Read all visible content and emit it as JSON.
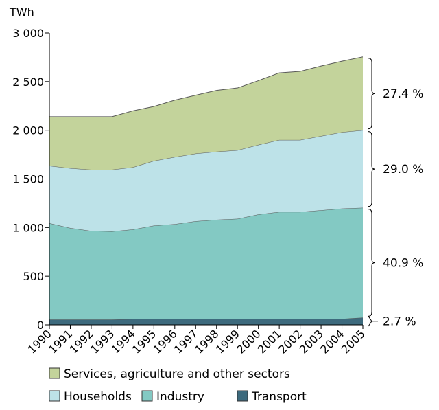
{
  "chart_data": {
    "type": "area",
    "stacked": true,
    "unit": "TWh",
    "x": [
      "1990",
      "1991",
      "1992",
      "1993",
      "1994",
      "1995",
      "1996",
      "1997",
      "1998",
      "1999",
      "2000",
      "2001",
      "2002",
      "2003",
      "2004",
      "2005"
    ],
    "ylim": [
      0,
      3000
    ],
    "yticks": [
      0,
      500,
      1000,
      1500,
      2000,
      2500,
      3000
    ],
    "ytick_labels": [
      "0",
      "500",
      "1 000",
      "1 500",
      "2 000",
      "2 500",
      "3 000"
    ],
    "grid": false,
    "series": [
      {
        "name": "Transport",
        "color": "#3d6a7d",
        "values": [
          55,
          55,
          55,
          55,
          60,
          60,
          60,
          60,
          60,
          60,
          60,
          60,
          60,
          60,
          62,
          75
        ]
      },
      {
        "name": "Industry",
        "color": "#83c9c3",
        "values": [
          990,
          940,
          910,
          905,
          920,
          960,
          975,
          1005,
          1020,
          1030,
          1075,
          1100,
          1100,
          1117,
          1133,
          1128
        ]
      },
      {
        "name": "Households",
        "color": "#bde2e8",
        "values": [
          590,
          615,
          630,
          635,
          640,
          665,
          690,
          695,
          700,
          705,
          715,
          740,
          740,
          763,
          785,
          797
        ]
      },
      {
        "name": "Services, agriculture and other sectors",
        "color": "#c3d39b",
        "values": [
          505,
          530,
          545,
          545,
          580,
          560,
          585,
          600,
          630,
          640,
          660,
          690,
          705,
          720,
          730,
          755
        ]
      }
    ],
    "shares": [
      {
        "label": "2.7 %",
        "series": "Transport"
      },
      {
        "label": "40.9 %",
        "series": "Industry"
      },
      {
        "label": "29.0 %",
        "series": "Households"
      },
      {
        "label": "27.4 %",
        "series": "Services, agriculture and other sectors"
      }
    ],
    "legend": {
      "placement": "bottom",
      "rows": [
        [
          "Services, agriculture and other sectors"
        ],
        [
          "Households",
          "Industry",
          "Transport"
        ]
      ]
    }
  }
}
